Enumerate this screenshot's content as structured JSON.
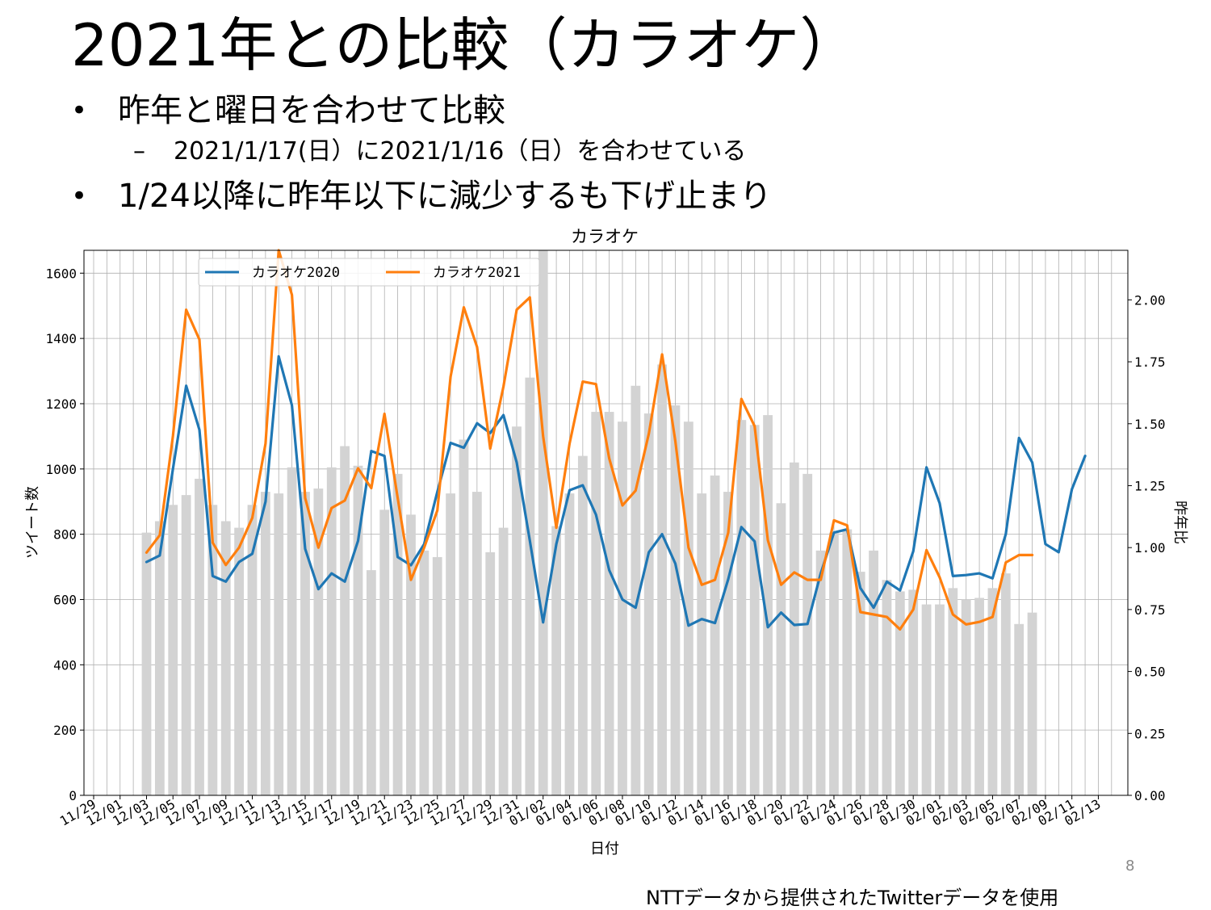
{
  "slide": {
    "title": "2021年との比較（カラオケ）",
    "bullets": [
      {
        "mark": "•",
        "text": "昨年と曜日を合わせて比較"
      },
      {
        "mark": "•",
        "text": "1/24以降に昨年以下に減少するも下げ止まり"
      }
    ],
    "sub_bullet": {
      "mark": "–",
      "text": "2021/1/17(日）に2021/1/16（日）を合わせている"
    },
    "page_number": "8",
    "source": "NTTデータから提供されたTwitterデータを使用"
  },
  "chart_data": {
    "type": "bar+line",
    "title": "カラオケ",
    "xlabel": "日付",
    "ylabel": "ツイート数",
    "y2label": "昨年比",
    "ylim": [
      0,
      1670
    ],
    "y2lim": [
      0,
      2.2
    ],
    "yticks": [
      0,
      200,
      400,
      600,
      800,
      1000,
      1200,
      1400,
      1600
    ],
    "y2ticks": [
      "0.00",
      "0.25",
      "0.50",
      "0.75",
      "1.00",
      "1.25",
      "1.50",
      "1.75",
      "2.00"
    ],
    "x_start": "11/29",
    "x_end": "02/14",
    "xtick_labels": [
      "11/29",
      "12/01",
      "12/03",
      "12/05",
      "12/07",
      "12/09",
      "12/11",
      "12/13",
      "12/15",
      "12/17",
      "12/19",
      "12/21",
      "12/23",
      "12/25",
      "12/27",
      "12/29",
      "12/31",
      "01/02",
      "01/04",
      "01/06",
      "01/08",
      "01/10",
      "01/12",
      "01/14",
      "01/16",
      "01/18",
      "01/20",
      "01/22",
      "01/24",
      "01/26",
      "01/28",
      "01/30",
      "02/01",
      "02/03",
      "02/05",
      "02/07",
      "02/09",
      "02/11",
      "02/13"
    ],
    "grid": true,
    "legend_position": "top-left",
    "bar_color": "#d3d3d3",
    "series": [
      {
        "name": "カラオケ2020",
        "color": "#1f77b4",
        "axis": "left",
        "start": "12/03",
        "values": [
          715,
          735,
          1000,
          1255,
          1120,
          672,
          655,
          715,
          740,
          900,
          1345,
          1195,
          755,
          632,
          680,
          655,
          780,
          1055,
          1040,
          730,
          705,
          770,
          930,
          1080,
          1065,
          1140,
          1110,
          1165,
          1020,
          780,
          530,
          770,
          935,
          950,
          860,
          690,
          600,
          575,
          745,
          800,
          710,
          520,
          540,
          528,
          662,
          822,
          778,
          515,
          560,
          522,
          525,
          680,
          805,
          815,
          635,
          575,
          655,
          628,
          748,
          1005,
          895,
          672,
          675,
          680,
          665,
          800,
          1095,
          1020,
          770,
          745,
          938,
          1040
        ]
      },
      {
        "name": "カラオケ2021",
        "color": "#ff7f0e",
        "axis": "right",
        "start": "12/03",
        "values": [
          0.98,
          1.05,
          1.45,
          1.96,
          1.84,
          1.02,
          0.93,
          1.0,
          1.12,
          1.42,
          2.2,
          2.02,
          1.2,
          1.0,
          1.16,
          1.19,
          1.32,
          1.24,
          1.54,
          1.2,
          0.87,
          1.0,
          1.15,
          1.69,
          1.97,
          1.81,
          1.4,
          1.65,
          1.96,
          2.01,
          1.45,
          1.08,
          1.42,
          1.67,
          1.66,
          1.36,
          1.17,
          1.23,
          1.46,
          1.78,
          1.43,
          1.0,
          0.85,
          0.87,
          1.06,
          1.6,
          1.49,
          1.03,
          0.85,
          0.9,
          0.87,
          0.87,
          1.11,
          1.09,
          0.74,
          0.73,
          0.72,
          0.67,
          0.75,
          0.99,
          0.88,
          0.73,
          0.69,
          0.7,
          0.72,
          0.94,
          0.97,
          0.97
        ]
      }
    ],
    "bars": {
      "axis": "left",
      "start": "12/03",
      "values": [
        805,
        840,
        890,
        920,
        970,
        890,
        840,
        820,
        890,
        930,
        925,
        1005,
        930,
        940,
        1005,
        1070,
        1010,
        690,
        875,
        985,
        860,
        750,
        730,
        925,
        1090,
        930,
        745,
        820,
        1130,
        1280,
        1680,
        825,
        925,
        1040,
        1175,
        1175,
        1145,
        1255,
        1170,
        1320,
        1195,
        1145,
        925,
        980,
        930,
        1150,
        1135,
        1165,
        895,
        1020,
        985,
        750,
        805,
        815,
        685,
        750,
        660,
        625,
        630,
        585,
        585,
        635,
        600,
        605,
        635,
        680,
        525,
        560
      ]
    }
  }
}
